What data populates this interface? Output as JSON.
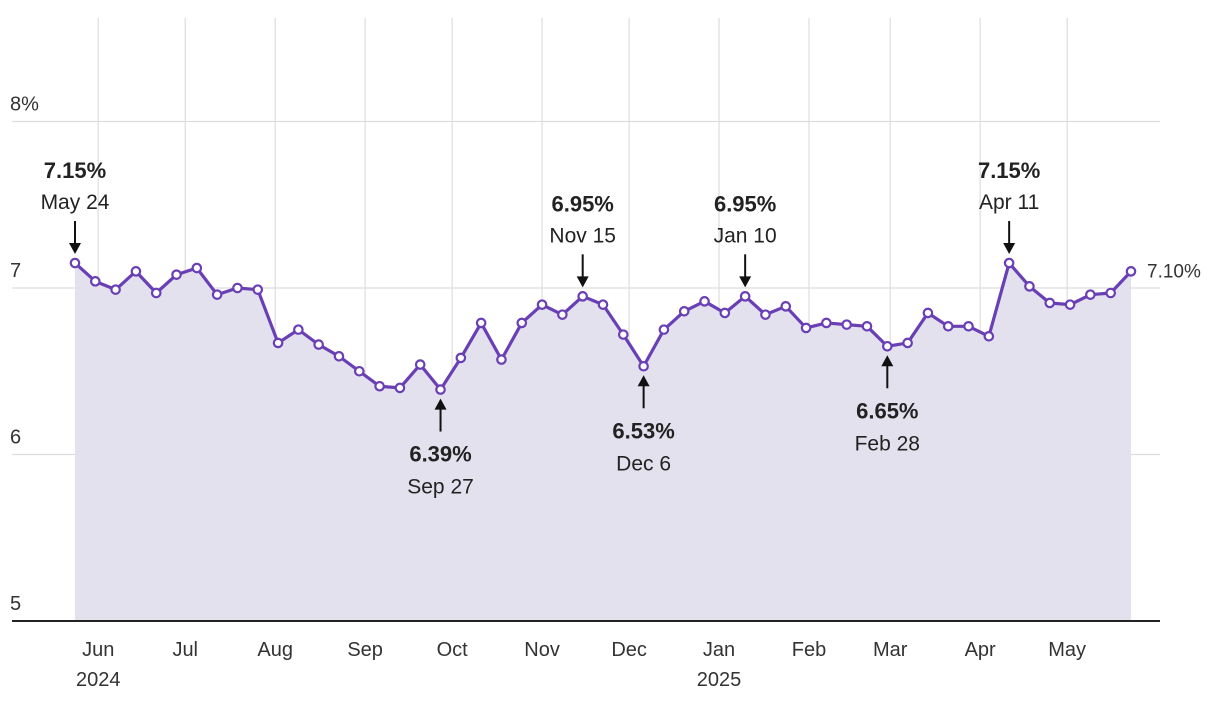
{
  "chart_data": {
    "type": "area",
    "ylim": [
      5,
      8.2
    ],
    "y_ticks": [
      {
        "value": 8,
        "label": "8%"
      },
      {
        "value": 7,
        "label": "7"
      },
      {
        "value": 6,
        "label": "6"
      },
      {
        "value": 5,
        "label": "5"
      }
    ],
    "x_ticks": [
      {
        "date": "2024-06-01",
        "label": "Jun",
        "sublabel": "2024"
      },
      {
        "date": "2024-07-01",
        "label": "Jul",
        "sublabel": ""
      },
      {
        "date": "2024-08-01",
        "label": "Aug",
        "sublabel": ""
      },
      {
        "date": "2024-09-01",
        "label": "Sep",
        "sublabel": ""
      },
      {
        "date": "2024-10-01",
        "label": "Oct",
        "sublabel": ""
      },
      {
        "date": "2024-11-01",
        "label": "Nov",
        "sublabel": ""
      },
      {
        "date": "2024-12-01",
        "label": "Dec",
        "sublabel": ""
      },
      {
        "date": "2025-01-01",
        "label": "Jan",
        "sublabel": "2025"
      },
      {
        "date": "2025-02-01",
        "label": "Feb",
        "sublabel": ""
      },
      {
        "date": "2025-03-01",
        "label": "Mar",
        "sublabel": ""
      },
      {
        "date": "2025-04-01",
        "label": "Apr",
        "sublabel": ""
      },
      {
        "date": "2025-05-01",
        "label": "May",
        "sublabel": ""
      }
    ],
    "x": [
      "2024-05-24",
      "2024-05-31",
      "2024-06-07",
      "2024-06-14",
      "2024-06-21",
      "2024-06-28",
      "2024-07-05",
      "2024-07-12",
      "2024-07-19",
      "2024-07-26",
      "2024-08-02",
      "2024-08-09",
      "2024-08-16",
      "2024-08-23",
      "2024-08-30",
      "2024-09-06",
      "2024-09-13",
      "2024-09-20",
      "2024-09-27",
      "2024-10-04",
      "2024-10-11",
      "2024-10-18",
      "2024-10-25",
      "2024-11-01",
      "2024-11-08",
      "2024-11-15",
      "2024-11-22",
      "2024-11-29",
      "2024-12-06",
      "2024-12-13",
      "2024-12-20",
      "2024-12-27",
      "2025-01-03",
      "2025-01-10",
      "2025-01-17",
      "2025-01-24",
      "2025-01-31",
      "2025-02-07",
      "2025-02-14",
      "2025-02-21",
      "2025-02-28",
      "2025-03-07",
      "2025-03-14",
      "2025-03-21",
      "2025-03-28",
      "2025-04-04",
      "2025-04-11",
      "2025-04-18",
      "2025-04-25",
      "2025-05-02",
      "2025-05-09",
      "2025-05-16",
      "2025-05-23"
    ],
    "series": [
      {
        "values": [
          7.15,
          7.04,
          6.99,
          7.1,
          6.97,
          7.08,
          7.12,
          6.96,
          7.0,
          6.99,
          6.67,
          6.75,
          6.66,
          6.59,
          6.5,
          6.41,
          6.4,
          6.54,
          6.39,
          6.58,
          6.79,
          6.57,
          6.79,
          6.9,
          6.84,
          6.95,
          6.9,
          6.72,
          6.53,
          6.75,
          6.86,
          6.92,
          6.85,
          6.95,
          6.84,
          6.89,
          6.76,
          6.79,
          6.78,
          6.77,
          6.65,
          6.67,
          6.85,
          6.77,
          6.77,
          6.71,
          7.15,
          7.01,
          6.91,
          6.9,
          6.96,
          6.97,
          7.1
        ],
        "color": "#6a3fb5",
        "fill": "#e3e1ee"
      }
    ],
    "annotations": [
      {
        "x": "2024-05-24",
        "y": 7.15,
        "value": "7.15%",
        "date": "May 24",
        "position": "above"
      },
      {
        "x": "2024-09-27",
        "y": 6.39,
        "value": "6.39%",
        "date": "Sep 27",
        "position": "below"
      },
      {
        "x": "2024-11-15",
        "y": 6.95,
        "value": "6.95%",
        "date": "Nov 15",
        "position": "above"
      },
      {
        "x": "2024-12-06",
        "y": 6.53,
        "value": "6.53%",
        "date": "Dec 6",
        "position": "below"
      },
      {
        "x": "2025-01-10",
        "y": 6.95,
        "value": "6.95%",
        "date": "Jan 10",
        "position": "above"
      },
      {
        "x": "2025-02-28",
        "y": 6.65,
        "value": "6.65%",
        "date": "Feb 28",
        "position": "below"
      },
      {
        "x": "2025-04-11",
        "y": 7.15,
        "value": "7.15%",
        "date": "Apr 11",
        "position": "above"
      }
    ],
    "last_value_label": "7.10%",
    "grid": true
  }
}
